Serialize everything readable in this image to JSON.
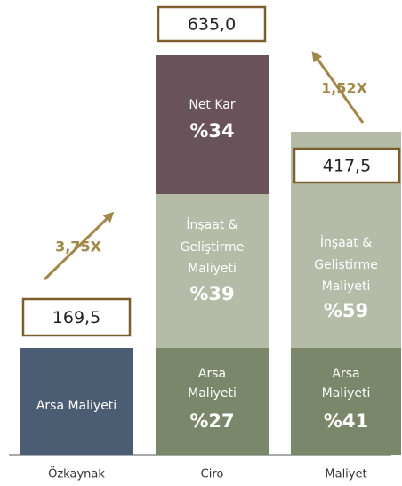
{
  "columns": [
    {
      "label": "Özkaynak",
      "total": "169,5",
      "segments": [
        {
          "lines": [
            "Arsa Maliyeti"
          ]
        }
      ]
    },
    {
      "label": "Ciro",
      "total": "635,0",
      "segments": [
        {
          "lines": [
            "Arsa",
            "Maliyeti"
          ],
          "share": "%27"
        },
        {
          "lines": [
            "İnşaat &",
            "Geliştirme",
            "Maliyeti"
          ],
          "share": "%39"
        },
        {
          "lines": [
            "Net Kar"
          ],
          "share": "%34"
        }
      ]
    },
    {
      "label": "Maliyet",
      "total": "417,5",
      "segments": [
        {
          "lines": [
            "Arsa",
            "Maliyeti"
          ],
          "share": "%41"
        },
        {
          "lines": [
            "İnşaat &",
            "Geliştirme",
            "Maliyeti"
          ],
          "share": "%59"
        }
      ]
    }
  ],
  "multipliers": [
    {
      "label": "3,75X"
    },
    {
      "label": "1,52X"
    }
  ]
}
